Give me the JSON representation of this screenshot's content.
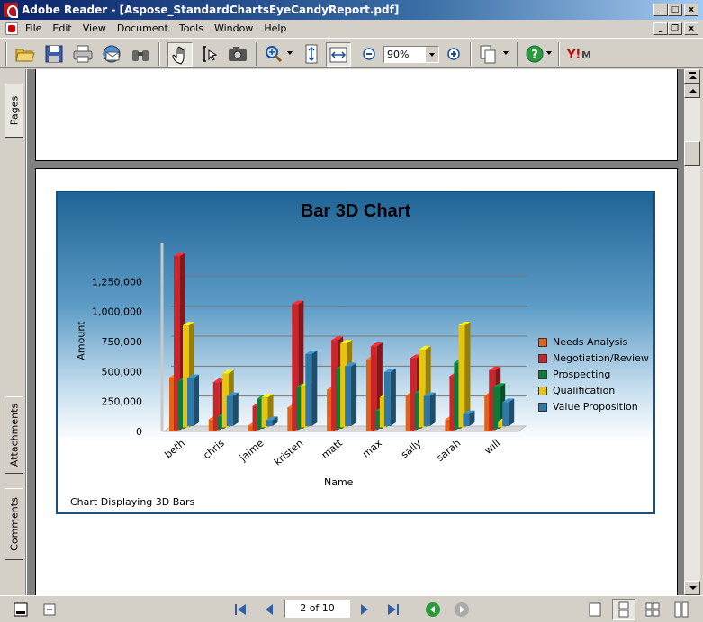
{
  "window": {
    "title": "Adobe Reader - [Aspose_StandardChartsEyeCandyReport.pdf]",
    "controls": {
      "minimize": "_",
      "maximize": "□",
      "close": "x"
    }
  },
  "menu": {
    "items": [
      "File",
      "Edit",
      "View",
      "Document",
      "Tools",
      "Window",
      "Help"
    ],
    "mdi_controls": {
      "minimize": "_",
      "restore": "❐",
      "close": "x"
    }
  },
  "toolbar": {
    "zoom_value": "90%"
  },
  "nav_tabs": [
    "Pages",
    "Attachments",
    "Comments"
  ],
  "status": {
    "page_indicator": "2 of 10"
  },
  "colors": {
    "needs_analysis": "#e0621b",
    "negotiation": "#c9252b",
    "prospecting": "#0b7a3a",
    "qualification": "#e7c40d",
    "value_proposition": "#2f78a8"
  },
  "chart_data": {
    "type": "bar",
    "title": "Bar 3D Chart",
    "footer": "Chart Displaying 3D Bars",
    "xlabel": "Name",
    "ylabel": "Amount",
    "categories": [
      "beth",
      "chris",
      "jaime",
      "kristen",
      "matt",
      "max",
      "sally",
      "sarah",
      "will"
    ],
    "yticks": [
      "0",
      "250,000",
      "500,000",
      "750,000",
      "1,000,000",
      "1,250,000"
    ],
    "ylim": [
      0,
      1500000
    ],
    "legend_position": "right",
    "series": [
      {
        "name": "Needs Analysis",
        "values": [
          450000,
          100000,
          50000,
          200000,
          350000,
          600000,
          300000,
          100000,
          300000
        ]
      },
      {
        "name": "Negotiation/Review",
        "values": [
          1450000,
          400000,
          200000,
          1050000,
          750000,
          700000,
          600000,
          450000,
          500000
        ]
      },
      {
        "name": "Prospecting",
        "values": [
          400000,
          100000,
          250000,
          350000,
          500000,
          150000,
          300000,
          550000,
          350000
        ]
      },
      {
        "name": "Qualification",
        "values": [
          850000,
          450000,
          250000,
          350000,
          700000,
          250000,
          650000,
          850000,
          50000
        ]
      },
      {
        "name": "Value Proposition",
        "values": [
          400000,
          250000,
          50000,
          600000,
          500000,
          450000,
          250000,
          100000,
          200000
        ]
      }
    ]
  }
}
